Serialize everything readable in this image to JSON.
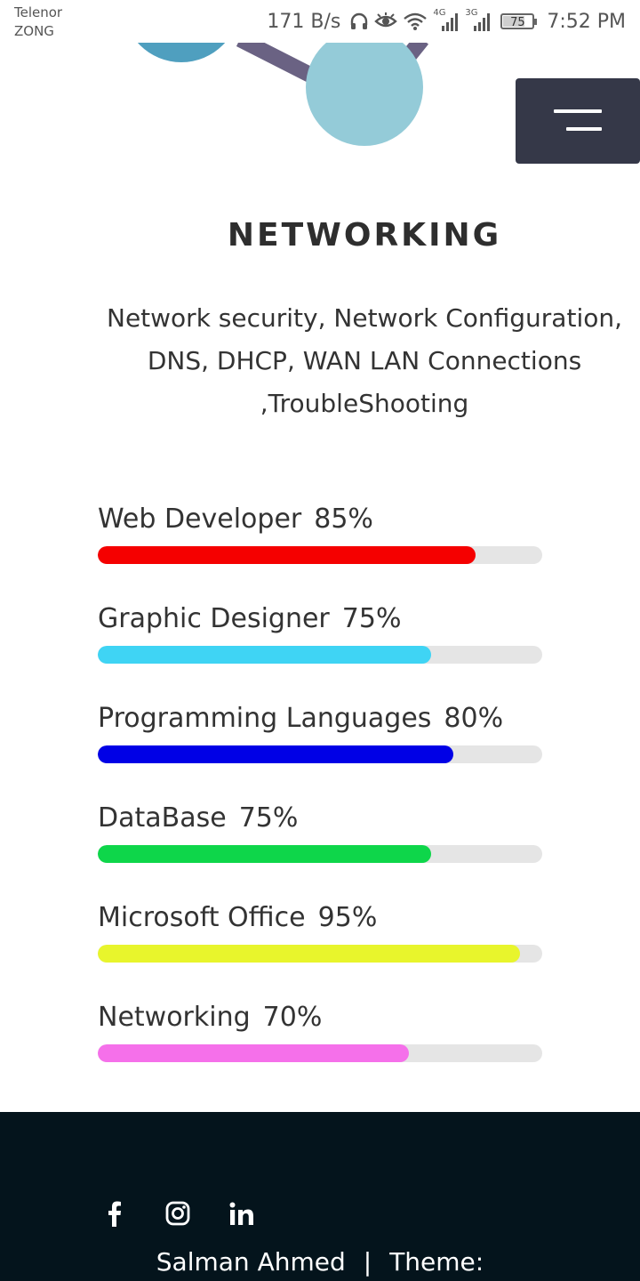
{
  "status_bar": {
    "carrier_1": "Telenor",
    "carrier_2": "ZONG",
    "net_speed": "171 B/s",
    "network_1": "4G",
    "network_2": "3G",
    "battery": "75",
    "battery_level": 0.75,
    "time": "7:52 PM"
  },
  "section": {
    "title": "NETWORKING",
    "description": "Network security, Network Configuration, DNS, DHCP, WAN LAN Connections ,TroubleShooting"
  },
  "skills": [
    {
      "name": "Web Developer",
      "percent_label": "85%",
      "value": 85,
      "color": "#f50000"
    },
    {
      "name": "Graphic Designer",
      "percent_label": "75%",
      "value": 75,
      "color": "#3fd4f4"
    },
    {
      "name": "Programming Languages",
      "percent_label": "80%",
      "value": 80,
      "color": "#0000e6"
    },
    {
      "name": "DataBase",
      "percent_label": "75%",
      "value": 75,
      "color": "#0ed64a"
    },
    {
      "name": "Microsoft Office",
      "percent_label": "95%",
      "value": 95,
      "color": "#e8f52c"
    },
    {
      "name": "Networking",
      "percent_label": "70%",
      "value": 70,
      "color": "#f570ea"
    }
  ],
  "footer": {
    "socials": [
      {
        "icon": "facebook-icon"
      },
      {
        "icon": "instagram-icon"
      },
      {
        "icon": "linkedin-icon"
      }
    ],
    "author": "Salman Ahmed",
    "separator": "|",
    "theme_label": "Theme:"
  },
  "colors": {
    "menu_button": "#353848",
    "footer_bg": "#04141c",
    "track": "#e5e5e5"
  }
}
